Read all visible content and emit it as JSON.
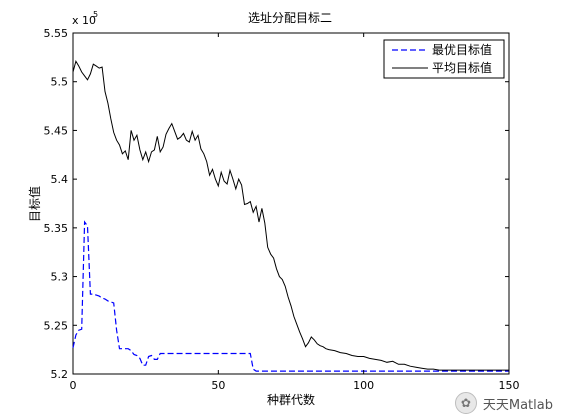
{
  "chart_data": {
    "type": "line",
    "title": "选址分配目标二",
    "xlabel": "种群代数",
    "ylabel": "目标值",
    "y_multiplier_label": "x 10",
    "y_multiplier_exponent": "5",
    "xlim": [
      0,
      150
    ],
    "ylim": [
      5.2,
      5.55
    ],
    "xticks": [
      0,
      50,
      100,
      150
    ],
    "yticks": [
      5.2,
      5.25,
      5.3,
      5.35,
      5.4,
      5.45,
      5.5,
      5.55
    ],
    "yticklabels": [
      "5.2",
      "5.25",
      "5.3",
      "5.35",
      "5.4",
      "5.45",
      "5.5",
      "5.55"
    ],
    "grid": false,
    "legend_position": "top-right",
    "series": [
      {
        "name": "最优目标值",
        "color": "#0000ff",
        "style": "dashed",
        "x": [
          0,
          1,
          2,
          3,
          4,
          5,
          6,
          7,
          8,
          9,
          10,
          11,
          12,
          13,
          14,
          15,
          16,
          17,
          18,
          19,
          20,
          21,
          22,
          23,
          24,
          25,
          26,
          27,
          28,
          29,
          30,
          35,
          40,
          45,
          50,
          55,
          60,
          61,
          62,
          63,
          64,
          65,
          70,
          80,
          90,
          100,
          110,
          120,
          130,
          140,
          150
        ],
        "y": [
          5.227,
          5.24,
          5.245,
          5.246,
          5.356,
          5.352,
          5.282,
          5.282,
          5.281,
          5.28,
          5.278,
          5.277,
          5.275,
          5.274,
          5.273,
          5.245,
          5.226,
          5.226,
          5.226,
          5.226,
          5.224,
          5.22,
          5.219,
          5.216,
          5.209,
          5.209,
          5.218,
          5.219,
          5.215,
          5.215,
          5.221,
          5.221,
          5.221,
          5.221,
          5.221,
          5.221,
          5.221,
          5.221,
          5.205,
          5.203,
          5.203,
          5.203,
          5.203,
          5.203,
          5.203,
          5.203,
          5.203,
          5.203,
          5.203,
          5.203,
          5.203
        ]
      },
      {
        "name": "平均目标值",
        "color": "#000000",
        "style": "solid",
        "x": [
          0,
          1,
          2,
          3,
          4,
          5,
          6,
          7,
          8,
          9,
          10,
          11,
          12,
          13,
          14,
          15,
          16,
          17,
          18,
          19,
          20,
          21,
          22,
          23,
          24,
          25,
          26,
          27,
          28,
          29,
          30,
          31,
          32,
          33,
          34,
          35,
          36,
          37,
          38,
          39,
          40,
          41,
          42,
          43,
          44,
          45,
          46,
          47,
          48,
          49,
          50,
          51,
          52,
          53,
          54,
          55,
          56,
          57,
          58,
          59,
          60,
          61,
          62,
          63,
          64,
          65,
          66,
          67,
          68,
          69,
          70,
          71,
          72,
          73,
          74,
          75,
          76,
          77,
          78,
          79,
          80,
          81,
          82,
          83,
          84,
          85,
          86,
          87,
          88,
          90,
          92,
          94,
          96,
          98,
          100,
          102,
          104,
          106,
          108,
          110,
          112,
          114,
          116,
          118,
          120,
          122,
          124,
          126,
          130,
          135,
          140,
          145,
          150
        ],
        "y": [
          5.51,
          5.521,
          5.516,
          5.51,
          5.506,
          5.502,
          5.508,
          5.518,
          5.516,
          5.514,
          5.515,
          5.49,
          5.478,
          5.462,
          5.448,
          5.44,
          5.435,
          5.426,
          5.429,
          5.42,
          5.45,
          5.44,
          5.445,
          5.43,
          5.42,
          5.428,
          5.418,
          5.428,
          5.43,
          5.444,
          5.428,
          5.433,
          5.446,
          5.452,
          5.457,
          5.449,
          5.441,
          5.443,
          5.447,
          5.44,
          5.438,
          5.449,
          5.44,
          5.445,
          5.431,
          5.426,
          5.418,
          5.404,
          5.41,
          5.4,
          5.393,
          5.407,
          5.398,
          5.395,
          5.409,
          5.4,
          5.39,
          5.4,
          5.394,
          5.374,
          5.375,
          5.377,
          5.366,
          5.372,
          5.356,
          5.37,
          5.355,
          5.33,
          5.323,
          5.319,
          5.308,
          5.3,
          5.297,
          5.29,
          5.279,
          5.27,
          5.259,
          5.251,
          5.243,
          5.236,
          5.228,
          5.232,
          5.238,
          5.235,
          5.231,
          5.229,
          5.228,
          5.226,
          5.225,
          5.224,
          5.222,
          5.221,
          5.219,
          5.218,
          5.218,
          5.216,
          5.215,
          5.214,
          5.212,
          5.213,
          5.21,
          5.21,
          5.208,
          5.207,
          5.206,
          5.205,
          5.205,
          5.204,
          5.204,
          5.204,
          5.204,
          5.204,
          5.204
        ]
      }
    ]
  },
  "watermark": {
    "text": "天天Matlab",
    "icon": "wechat-icon"
  }
}
